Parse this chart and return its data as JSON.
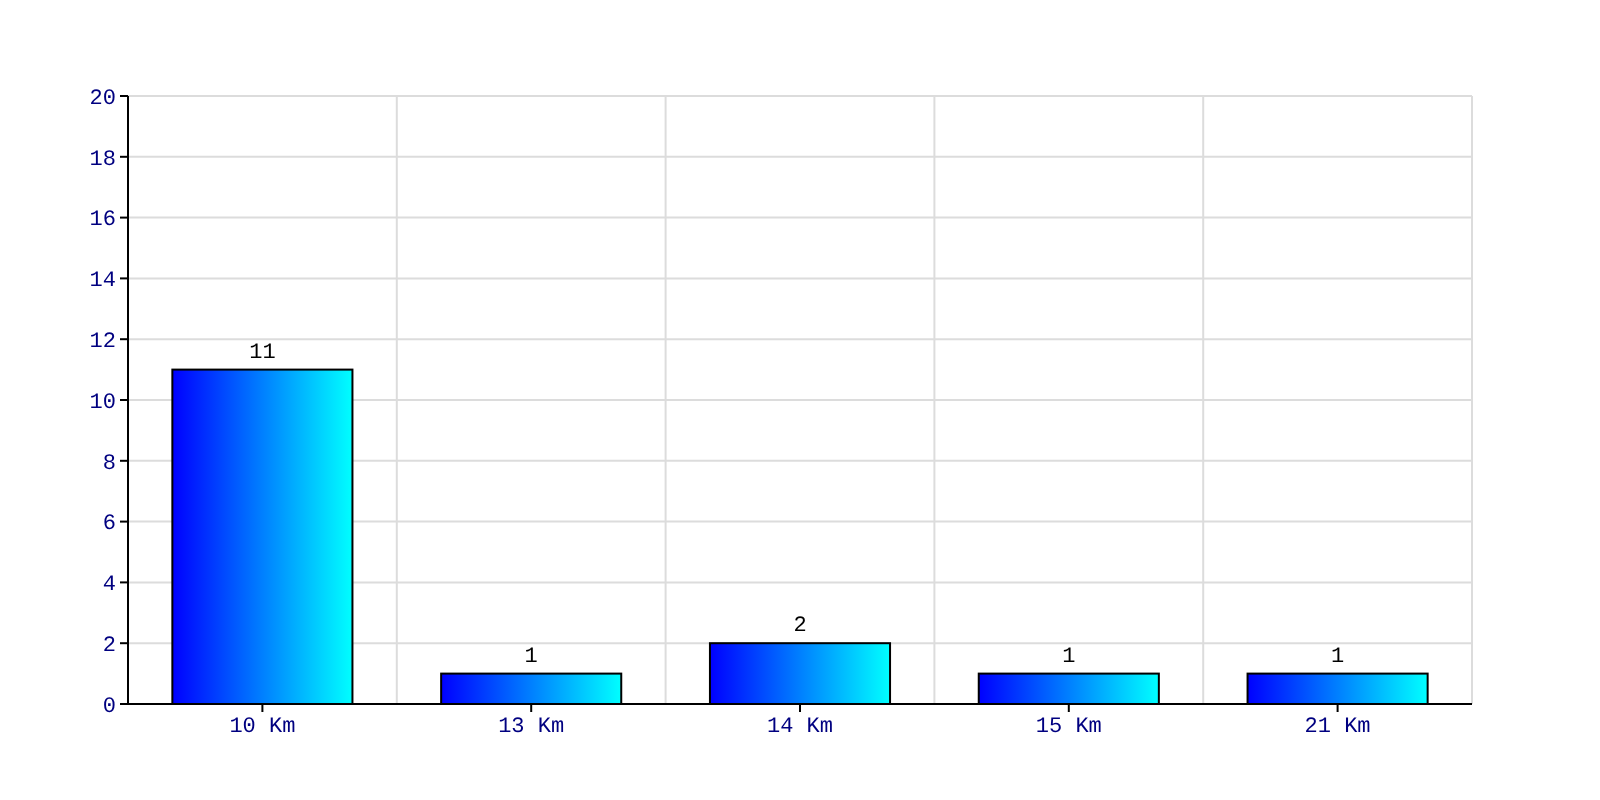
{
  "chart_data": {
    "type": "bar",
    "categories": [
      "10 Km",
      "13 Km",
      "14 Km",
      "15 Km",
      "21 Km"
    ],
    "values": [
      11,
      1,
      2,
      1,
      1
    ],
    "color": "#0000ff",
    "ylim": [
      0,
      20
    ],
    "yticks": [
      0,
      2,
      4,
      6,
      8,
      10,
      12,
      14,
      16,
      18,
      20
    ],
    "grid": true,
    "data_labels": true
  }
}
